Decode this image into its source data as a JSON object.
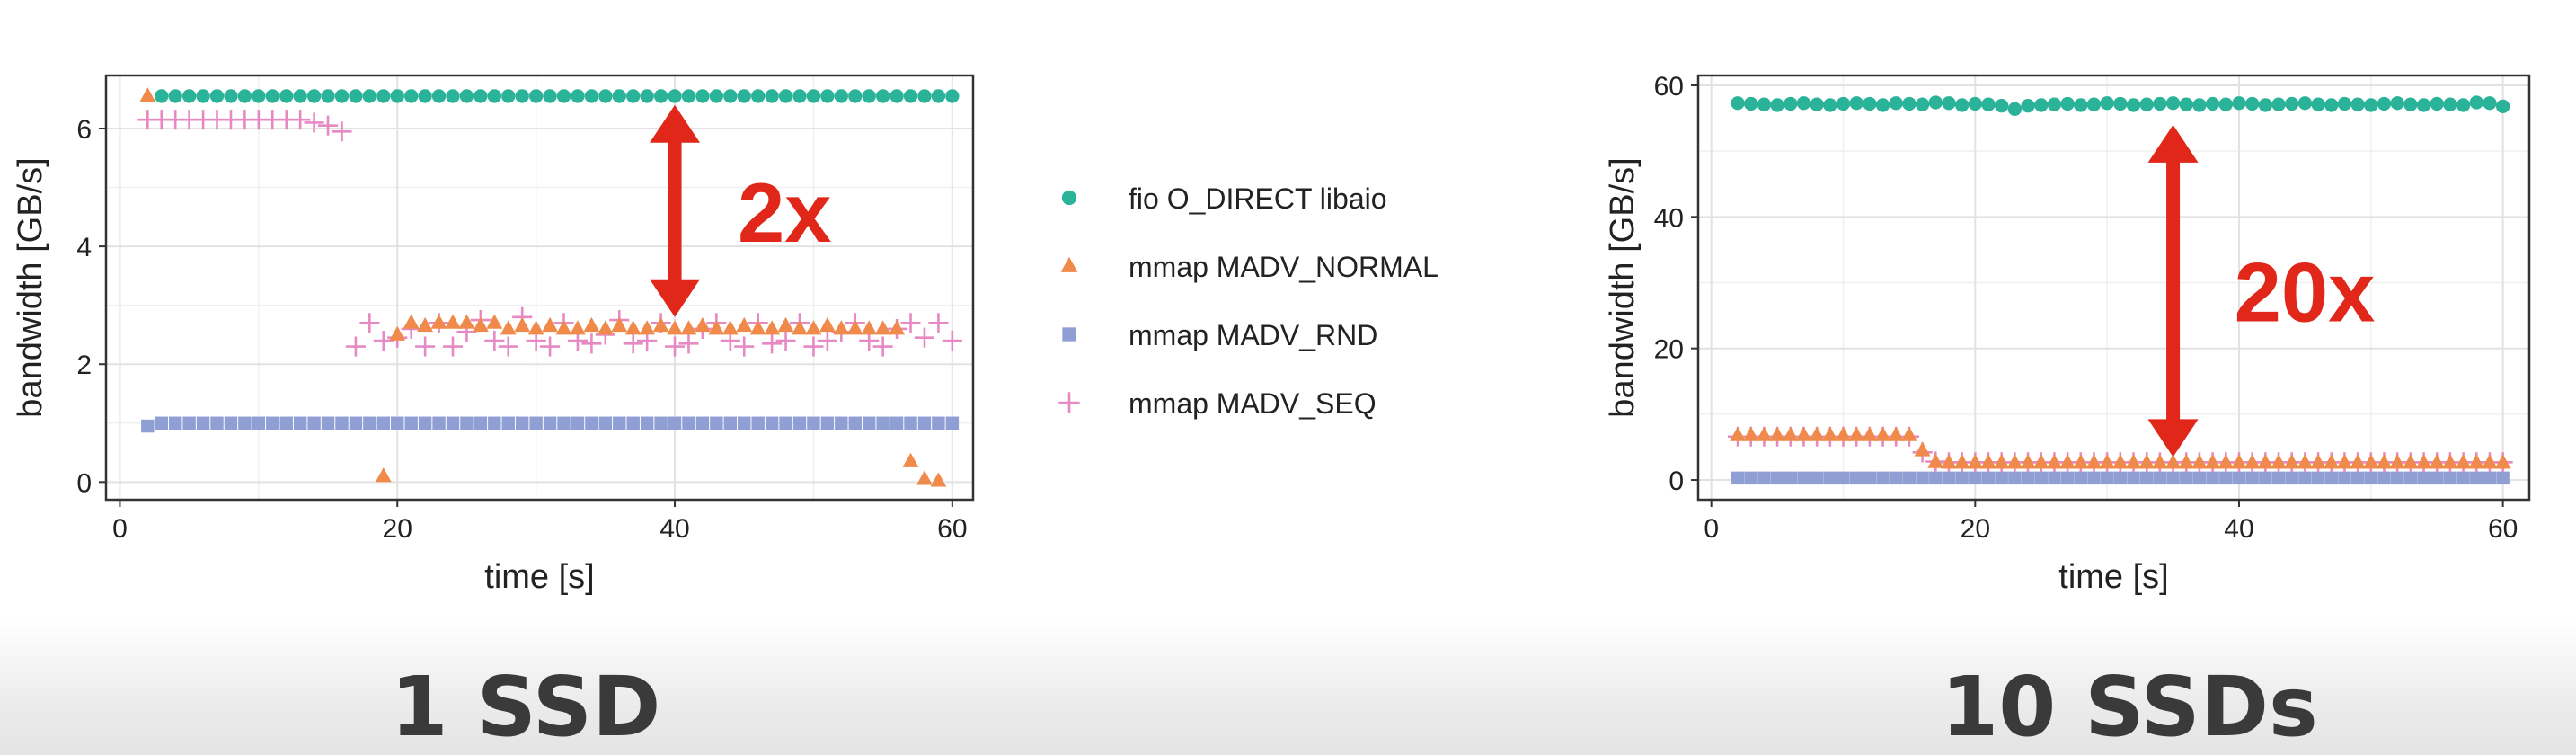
{
  "chart_data": [
    {
      "type": "scatter",
      "caption": "1 SSD",
      "xlabel": "time [s]",
      "ylabel": "bandwidth [GB/s]",
      "xlim": [
        -1,
        61.5
      ],
      "ylim": [
        -0.3,
        6.9
      ],
      "xticks": [
        0,
        20,
        40,
        60
      ],
      "yticks": [
        0,
        2,
        4,
        6
      ],
      "grid": true,
      "legend": "right-of-panel",
      "series": [
        {
          "name": "fio O_DIRECT libaio",
          "marker": "circle",
          "color": "#2bb39a",
          "x": [
            3,
            4,
            5,
            6,
            7,
            8,
            9,
            10,
            11,
            12,
            13,
            14,
            15,
            16,
            17,
            18,
            19,
            20,
            21,
            22,
            23,
            24,
            25,
            26,
            27,
            28,
            29,
            30,
            31,
            32,
            33,
            34,
            35,
            36,
            37,
            38,
            39,
            40,
            41,
            42,
            43,
            44,
            45,
            46,
            47,
            48,
            49,
            50,
            51,
            52,
            53,
            54,
            55,
            56,
            57,
            58,
            59,
            60
          ],
          "y": [
            6.55,
            6.55,
            6.55,
            6.55,
            6.55,
            6.55,
            6.55,
            6.55,
            6.55,
            6.55,
            6.55,
            6.55,
            6.55,
            6.55,
            6.55,
            6.55,
            6.55,
            6.55,
            6.55,
            6.55,
            6.55,
            6.55,
            6.55,
            6.55,
            6.55,
            6.55,
            6.55,
            6.55,
            6.55,
            6.55,
            6.55,
            6.55,
            6.55,
            6.55,
            6.55,
            6.55,
            6.55,
            6.55,
            6.55,
            6.55,
            6.55,
            6.55,
            6.55,
            6.55,
            6.55,
            6.55,
            6.55,
            6.55,
            6.55,
            6.55,
            6.55,
            6.55,
            6.55,
            6.55,
            6.55,
            6.55,
            6.55,
            6.55
          ]
        },
        {
          "name": "mmap MADV_NORMAL",
          "marker": "triangle",
          "color": "#f08a4b",
          "x": [
            2,
            19,
            20,
            21,
            22,
            23,
            24,
            25,
            26,
            27,
            28,
            29,
            30,
            31,
            32,
            33,
            34,
            35,
            36,
            37,
            38,
            39,
            40,
            41,
            42,
            43,
            44,
            45,
            46,
            47,
            48,
            49,
            50,
            51,
            52,
            53,
            54,
            55,
            56,
            57,
            58,
            59
          ],
          "y": [
            6.55,
            0.1,
            2.5,
            2.7,
            2.65,
            2.7,
            2.7,
            2.7,
            2.65,
            2.7,
            2.6,
            2.65,
            2.6,
            2.65,
            2.6,
            2.6,
            2.65,
            2.6,
            2.65,
            2.6,
            2.6,
            2.65,
            2.6,
            2.6,
            2.65,
            2.6,
            2.6,
            2.65,
            2.6,
            2.6,
            2.65,
            2.6,
            2.6,
            2.65,
            2.6,
            2.6,
            2.6,
            2.6,
            2.6,
            0.35,
            0.05,
            0.02
          ]
        },
        {
          "name": "mmap MADV_RND",
          "marker": "square",
          "color": "#8f9fd3",
          "x": [
            2,
            3,
            4,
            5,
            6,
            7,
            8,
            9,
            10,
            11,
            12,
            13,
            14,
            15,
            16,
            17,
            18,
            19,
            20,
            21,
            22,
            23,
            24,
            25,
            26,
            27,
            28,
            29,
            30,
            31,
            32,
            33,
            34,
            35,
            36,
            37,
            38,
            39,
            40,
            41,
            42,
            43,
            44,
            45,
            46,
            47,
            48,
            49,
            50,
            51,
            52,
            53,
            54,
            55,
            56,
            57,
            58,
            59,
            60
          ],
          "y": [
            0.95,
            1,
            1,
            1,
            1,
            1,
            1,
            1,
            1,
            1,
            1,
            1,
            1,
            1,
            1,
            1,
            1,
            1,
            1,
            1,
            1,
            1,
            1,
            1,
            1,
            1,
            1,
            1,
            1,
            1,
            1,
            1,
            1,
            1,
            1,
            1,
            1,
            1,
            1,
            1,
            1,
            1,
            1,
            1,
            1,
            1,
            1,
            1,
            1,
            1,
            1,
            1,
            1,
            1,
            1,
            1,
            1,
            1,
            1
          ]
        },
        {
          "name": "mmap MADV_SEQ",
          "marker": "plus",
          "color": "#e78ac3",
          "x": [
            2,
            3,
            4,
            5,
            6,
            7,
            8,
            9,
            10,
            11,
            12,
            13,
            14,
            15,
            16,
            17,
            18,
            19,
            20,
            21,
            22,
            23,
            24,
            25,
            26,
            27,
            28,
            29,
            30,
            31,
            32,
            33,
            34,
            35,
            36,
            37,
            38,
            39,
            40,
            41,
            42,
            43,
            44,
            45,
            46,
            47,
            48,
            49,
            50,
            51,
            52,
            53,
            54,
            55,
            56,
            57,
            58,
            59,
            60
          ],
          "y": [
            6.15,
            6.15,
            6.15,
            6.15,
            6.15,
            6.15,
            6.15,
            6.15,
            6.15,
            6.15,
            6.15,
            6.15,
            6.1,
            6.05,
            5.95,
            2.3,
            2.7,
            2.4,
            2.45,
            2.6,
            2.3,
            2.7,
            2.3,
            2.55,
            2.75,
            2.4,
            2.3,
            2.8,
            2.4,
            2.3,
            2.7,
            2.4,
            2.35,
            2.5,
            2.75,
            2.35,
            2.4,
            2.7,
            2.3,
            2.35,
            2.6,
            2.7,
            2.4,
            2.3,
            2.7,
            2.35,
            2.4,
            2.7,
            2.3,
            2.4,
            2.55,
            2.7,
            2.4,
            2.3,
            2.6,
            2.7,
            2.45,
            2.7,
            2.4
          ]
        }
      ],
      "annotation": {
        "label": "2x",
        "color": "#e0271a",
        "arrow_x": 40,
        "arrow_y": [
          2.8,
          6.4
        ]
      }
    },
    {
      "type": "scatter",
      "caption": "10 SSDs",
      "xlabel": "time [s]",
      "ylabel": "bandwidth [GB/s]",
      "xlim": [
        -1,
        62
      ],
      "ylim": [
        -3,
        61.5
      ],
      "xticks": [
        0,
        20,
        40,
        60
      ],
      "yticks": [
        0,
        20,
        40,
        60
      ],
      "grid": true,
      "series": [
        {
          "name": "fio O_DIRECT libaio",
          "marker": "circle",
          "color": "#2bb39a",
          "x": [
            2,
            3,
            4,
            5,
            6,
            7,
            8,
            9,
            10,
            11,
            12,
            13,
            14,
            15,
            16,
            17,
            18,
            19,
            20,
            21,
            22,
            23,
            24,
            25,
            26,
            27,
            28,
            29,
            30,
            31,
            32,
            33,
            34,
            35,
            36,
            37,
            38,
            39,
            40,
            41,
            42,
            43,
            44,
            45,
            46,
            47,
            48,
            49,
            50,
            51,
            52,
            53,
            54,
            55,
            56,
            57,
            58,
            59,
            60
          ],
          "y": [
            57.3,
            57.2,
            57.1,
            57.0,
            57.2,
            57.3,
            57.1,
            57.0,
            57.2,
            57.3,
            57.2,
            57.0,
            57.3,
            57.2,
            57.1,
            57.4,
            57.3,
            57.0,
            57.2,
            57.1,
            56.9,
            56.4,
            56.9,
            57.0,
            57.1,
            57.2,
            57.0,
            57.1,
            57.3,
            57.2,
            57.0,
            57.1,
            57.2,
            57.3,
            57.1,
            57.0,
            57.2,
            57.1,
            57.3,
            57.2,
            57.0,
            57.1,
            57.2,
            57.3,
            57.1,
            57.0,
            57.2,
            57.1,
            57.0,
            57.2,
            57.3,
            57.1,
            57.0,
            57.2,
            57.1,
            57.0,
            57.4,
            57.3,
            56.8
          ]
        },
        {
          "name": "mmap MADV_NORMAL",
          "marker": "triangle",
          "color": "#f08a4b",
          "x": [
            2,
            3,
            4,
            5,
            6,
            7,
            8,
            9,
            10,
            11,
            12,
            13,
            14,
            15,
            16,
            17,
            18,
            19,
            20,
            21,
            22,
            23,
            24,
            25,
            26,
            27,
            28,
            29,
            30,
            31,
            32,
            33,
            34,
            35,
            36,
            37,
            38,
            39,
            40,
            41,
            42,
            43,
            44,
            45,
            46,
            47,
            48,
            49,
            50,
            51,
            52,
            53,
            54,
            55,
            56,
            57,
            58,
            59,
            60
          ],
          "y": [
            6.8,
            6.8,
            6.8,
            6.8,
            6.8,
            6.8,
            6.8,
            6.8,
            6.8,
            6.8,
            6.8,
            6.8,
            6.8,
            6.8,
            4.5,
            2.7,
            2.6,
            2.6,
            2.6,
            2.6,
            2.6,
            2.6,
            2.6,
            2.6,
            2.6,
            2.6,
            2.6,
            2.6,
            2.6,
            2.6,
            2.6,
            2.6,
            2.6,
            2.6,
            2.6,
            2.6,
            2.6,
            2.6,
            2.6,
            2.6,
            2.6,
            2.6,
            2.6,
            2.6,
            2.6,
            2.6,
            2.6,
            2.6,
            2.6,
            2.6,
            2.6,
            2.6,
            2.6,
            2.6,
            2.6,
            2.6,
            2.6,
            2.6,
            2.6
          ]
        },
        {
          "name": "mmap MADV_RND",
          "marker": "square",
          "color": "#8f9fd3",
          "x": [
            2,
            3,
            4,
            5,
            6,
            7,
            8,
            9,
            10,
            11,
            12,
            13,
            14,
            15,
            16,
            17,
            18,
            19,
            20,
            21,
            22,
            23,
            24,
            25,
            26,
            27,
            28,
            29,
            30,
            31,
            32,
            33,
            34,
            35,
            36,
            37,
            38,
            39,
            40,
            41,
            42,
            43,
            44,
            45,
            46,
            47,
            48,
            49,
            50,
            51,
            52,
            53,
            54,
            55,
            56,
            57,
            58,
            59,
            60
          ],
          "y": [
            0.3,
            0.3,
            0.3,
            0.3,
            0.3,
            0.3,
            0.3,
            0.3,
            0.3,
            0.3,
            0.3,
            0.3,
            0.3,
            0.3,
            0.3,
            0.3,
            0.3,
            0.3,
            0.3,
            0.3,
            0.3,
            0.3,
            0.3,
            0.3,
            0.3,
            0.3,
            0.3,
            0.3,
            0.3,
            0.3,
            0.3,
            0.3,
            0.3,
            0.3,
            0.3,
            0.3,
            0.3,
            0.3,
            0.3,
            0.3,
            0.3,
            0.3,
            0.3,
            0.3,
            0.3,
            0.3,
            0.3,
            0.3,
            0.3,
            0.3,
            0.3,
            0.3,
            0.3,
            0.3,
            0.3,
            0.3,
            0.3,
            0.3,
            0.3
          ]
        },
        {
          "name": "mmap MADV_SEQ",
          "marker": "plus",
          "color": "#e78ac3",
          "x": [
            2,
            3,
            4,
            5,
            6,
            7,
            8,
            9,
            10,
            11,
            12,
            13,
            14,
            15,
            16,
            17,
            18,
            19,
            20,
            21,
            22,
            23,
            24,
            25,
            26,
            27,
            28,
            29,
            30,
            31,
            32,
            33,
            34,
            35,
            36,
            37,
            38,
            39,
            40,
            41,
            42,
            43,
            44,
            45,
            46,
            47,
            48,
            49,
            50,
            51,
            52,
            53,
            54,
            55,
            56,
            57,
            58,
            59,
            60
          ],
          "y": [
            6.6,
            6.6,
            6.6,
            6.6,
            6.6,
            6.6,
            6.6,
            6.6,
            6.6,
            6.6,
            6.6,
            6.6,
            6.6,
            6.6,
            4.2,
            2.8,
            2.7,
            2.7,
            2.7,
            2.7,
            2.7,
            2.7,
            2.7,
            2.7,
            2.7,
            2.7,
            2.7,
            2.7,
            2.7,
            2.7,
            2.7,
            2.7,
            2.7,
            2.7,
            2.7,
            2.7,
            2.7,
            2.7,
            2.7,
            2.7,
            2.7,
            2.7,
            2.7,
            2.7,
            2.7,
            2.7,
            2.7,
            2.7,
            2.7,
            2.7,
            2.7,
            2.7,
            2.7,
            2.7,
            2.7,
            2.7,
            2.7,
            2.7,
            2.7
          ]
        }
      ],
      "annotation": {
        "label": "20x",
        "color": "#e0271a",
        "arrow_x": 35,
        "arrow_y": [
          3.5,
          54
        ]
      }
    }
  ]
}
